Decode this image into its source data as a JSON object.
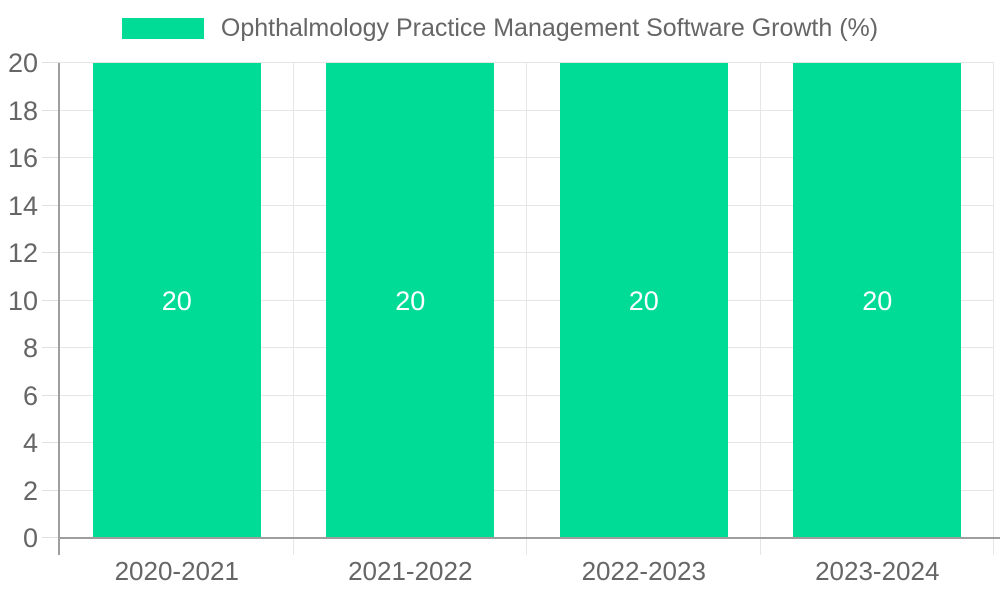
{
  "chart_data": {
    "type": "bar",
    "title": "Ophthalmology Practice Management Software Growth (%)",
    "legend": [
      {
        "label": "Ophthalmology Practice Management Software Growth (%)",
        "color": "#00DB96"
      }
    ],
    "legend_position": "top-center",
    "categories": [
      "2020-2021",
      "2021-2022",
      "2022-2023",
      "2023-2024"
    ],
    "series": [
      {
        "name": "Ophthalmology Practice Management Software Growth (%)",
        "values": [
          20,
          20,
          20,
          20
        ]
      }
    ],
    "bar_value_labels": [
      "20",
      "20",
      "20",
      "20"
    ],
    "xlabel": "",
    "ylabel": "",
    "ylim": [
      0,
      20
    ],
    "yticks": [
      0,
      2,
      4,
      6,
      8,
      10,
      12,
      14,
      16,
      18,
      20
    ],
    "grid": true,
    "colors": {
      "bar": "#00DB96",
      "axis_text": "#666666",
      "value_label_text": "#FFFFFF",
      "gridline": "#E6E6E6",
      "axis_border": "#9E9E9E",
      "background": "#FFFFFF"
    }
  }
}
